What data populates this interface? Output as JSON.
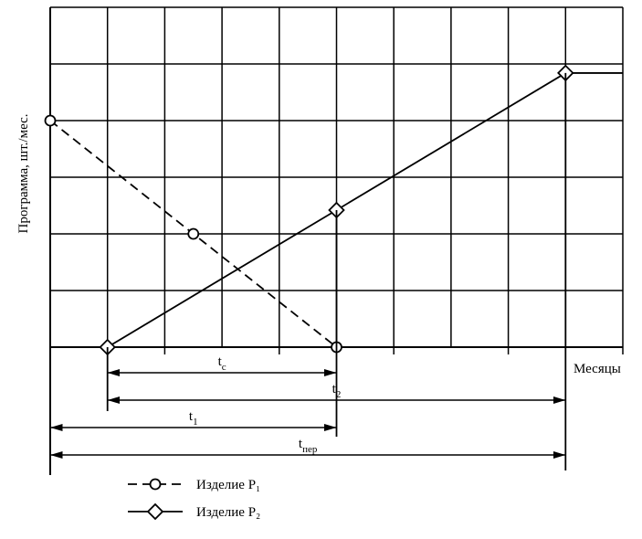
{
  "chart_data": {
    "type": "line",
    "x_label": "Месяцы",
    "y_label": "Программа, шт./мес.",
    "xlim": [
      0,
      10
    ],
    "ylim": [
      0,
      6
    ],
    "xticks": [
      0,
      1,
      2,
      3,
      4,
      5,
      6,
      7,
      8,
      9,
      10
    ],
    "yticks": [
      0,
      1,
      2,
      3,
      4,
      5,
      6
    ],
    "grid": true,
    "series": [
      {
        "name": "Изделие P₁",
        "color": "#000000",
        "dash": true,
        "marker": "circle",
        "x": [
          0,
          2.5,
          5
        ],
        "values": [
          4,
          2,
          0
        ],
        "markers": [
          true,
          true,
          true
        ]
      },
      {
        "name": "Изделие P₂",
        "color": "#000000",
        "dash": false,
        "marker": "diamond",
        "x": [
          1,
          5,
          9,
          10
        ],
        "values": [
          0,
          2.42,
          4.84,
          4.84
        ],
        "markers": [
          true,
          true,
          true,
          false
        ]
      }
    ],
    "intervals": [
      {
        "label": "t",
        "sub": "с",
        "from": 1,
        "to": 5
      },
      {
        "label": "t",
        "sub": "2",
        "from": 1,
        "to": 9
      },
      {
        "label": "t",
        "sub": "1",
        "from": 0,
        "to": 5
      },
      {
        "label": "t",
        "sub": "пер",
        "from": 0,
        "to": 9
      }
    ]
  }
}
